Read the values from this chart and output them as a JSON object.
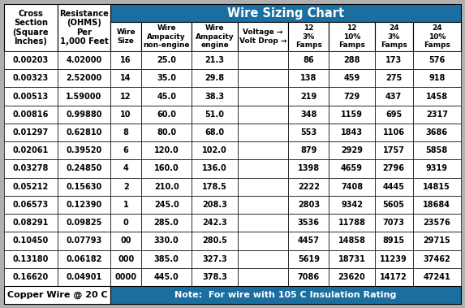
{
  "title": "Wire Sizing Chart",
  "teal": "#1a6fa0",
  "white": "#ffffff",
  "black": "#000000",
  "col_headers": [
    "Wire\nSize",
    "Wire\nAmpacity\nnon-engine",
    "Wire\nAmpacity\nengine",
    "Voltage →\nVolt Drop →",
    "12\n3%\nFamps",
    "12\n10%\nFamps",
    "24\n3%\nFamps",
    "24\n10%\nFamps"
  ],
  "left_col1_header": "Cross\nSection\n(Square\nInches)",
  "left_col2_header": "Resistance\n(OHMS)\nPer\n1,000 Feet",
  "rows": [
    [
      "0.00203",
      "4.02000",
      "16",
      "25.0",
      "21.3",
      "",
      "86",
      "288",
      "173",
      "576"
    ],
    [
      "0.00323",
      "2.52000",
      "14",
      "35.0",
      "29.8",
      "",
      "138",
      "459",
      "275",
      "918"
    ],
    [
      "0.00513",
      "1.59000",
      "12",
      "45.0",
      "38.3",
      "",
      "219",
      "729",
      "437",
      "1458"
    ],
    [
      "0.00816",
      "0.99880",
      "10",
      "60.0",
      "51.0",
      "",
      "348",
      "1159",
      "695",
      "2317"
    ],
    [
      "0.01297",
      "0.62810",
      "8",
      "80.0",
      "68.0",
      "",
      "553",
      "1843",
      "1106",
      "3686"
    ],
    [
      "0.02061",
      "0.39520",
      "6",
      "120.0",
      "102.0",
      "",
      "879",
      "2929",
      "1757",
      "5858"
    ],
    [
      "0.03278",
      "0.24850",
      "4",
      "160.0",
      "136.0",
      "",
      "1398",
      "4659",
      "2796",
      "9319"
    ],
    [
      "0.05212",
      "0.15630",
      "2",
      "210.0",
      "178.5",
      "",
      "2222",
      "7408",
      "4445",
      "14815"
    ],
    [
      "0.06573",
      "0.12390",
      "1",
      "245.0",
      "208.3",
      "",
      "2803",
      "9342",
      "5605",
      "18684"
    ],
    [
      "0.08291",
      "0.09825",
      "0",
      "285.0",
      "242.3",
      "",
      "3536",
      "11788",
      "7073",
      "23576"
    ],
    [
      "0.10450",
      "0.07793",
      "00",
      "330.0",
      "280.5",
      "",
      "4457",
      "14858",
      "8915",
      "29715"
    ],
    [
      "0.13180",
      "0.06182",
      "000",
      "385.0",
      "327.3",
      "",
      "5619",
      "18731",
      "11239",
      "37462"
    ],
    [
      "0.16620",
      "0.04901",
      "0000",
      "445.0",
      "378.3",
      "",
      "7086",
      "23620",
      "14172",
      "47241"
    ]
  ],
  "footer_left": "Copper Wire @ 20 C",
  "footer_right": "Note:  For wire with 105 C Insulation Rating",
  "fig_width": 5.73,
  "fig_height": 3.79,
  "dpi": 100
}
